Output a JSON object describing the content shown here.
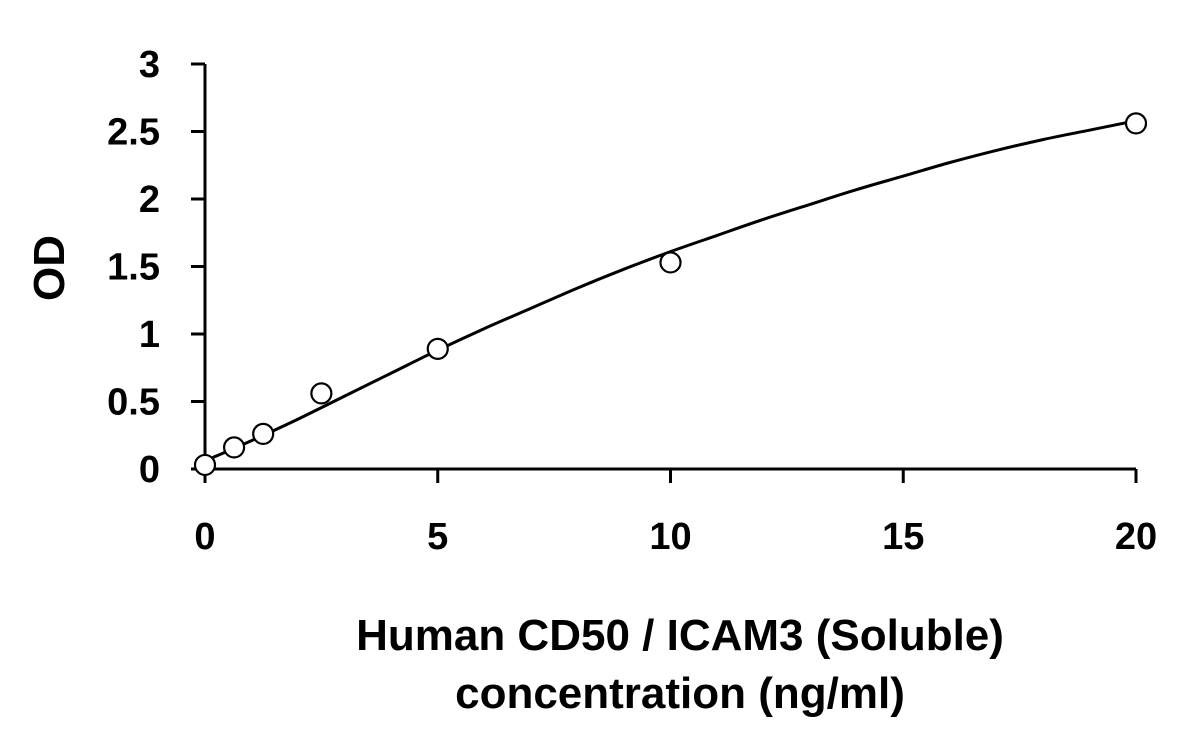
{
  "chart_data": {
    "type": "scatter",
    "title": "",
    "xlabel_lines": [
      "Human CD50 / ICAM3 (Soluble)",
      "concentration (ng/ml)"
    ],
    "ylabel": "OD",
    "xlim": [
      0,
      20
    ],
    "ylim": [
      0,
      3
    ],
    "x_ticks": [
      0,
      5,
      10,
      15,
      20
    ],
    "x_tick_labels": [
      "0",
      "5",
      "10",
      "15",
      "20"
    ],
    "y_ticks": [
      0,
      0.5,
      1,
      1.5,
      2,
      2.5,
      3
    ],
    "y_tick_labels": [
      "0",
      "0.5",
      "1",
      "1.5",
      "2",
      "2.5",
      "3"
    ],
    "grid": false,
    "legend": "none",
    "series": [
      {
        "marker": "open-circle",
        "x": [
          0,
          0.625,
          1.25,
          2.5,
          5,
          10,
          20
        ],
        "y": [
          0.03,
          0.16,
          0.26,
          0.56,
          0.89,
          1.53,
          2.56
        ]
      }
    ],
    "fit_curve": {
      "style": "smooth-line",
      "x": [
        0,
        1,
        2,
        3,
        4,
        5,
        6,
        7,
        8,
        9,
        10,
        11,
        12,
        13,
        14,
        15,
        16,
        17,
        18,
        19,
        20
      ],
      "y": [
        0.06,
        0.21,
        0.37,
        0.54,
        0.71,
        0.88,
        1.04,
        1.19,
        1.34,
        1.48,
        1.61,
        1.73,
        1.85,
        1.96,
        2.07,
        2.17,
        2.27,
        2.36,
        2.44,
        2.51,
        2.58
      ]
    },
    "colors": {
      "axis": "#000000",
      "marker_stroke": "#000000",
      "marker_fill": "#ffffff",
      "curve": "#000000"
    }
  }
}
